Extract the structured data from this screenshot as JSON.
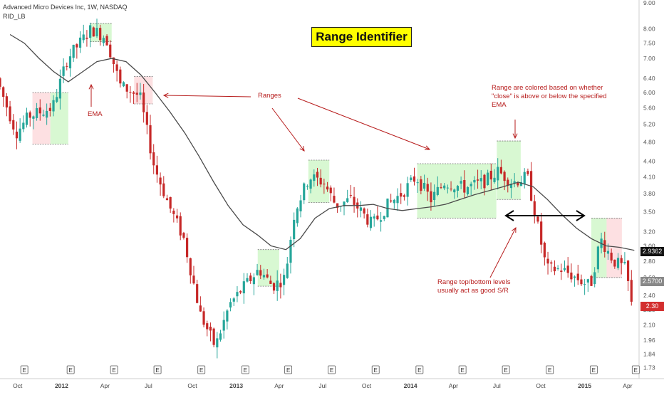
{
  "header": {
    "symbol_line": "Advanced Micro Devices Inc, 1W, NASDAQ",
    "indicator": "RID_LB"
  },
  "title": "Range Identifier",
  "annotations": {
    "ema": "EMA",
    "ranges": "Ranges",
    "colored_note": [
      "Range are colored based on whether",
      "\"close\" is above or below the specified",
      "EMA"
    ],
    "sr_note": [
      "Range top/bottom levels",
      "usually act as good S/R"
    ]
  },
  "price_tags": {
    "ema_value": "2.9362",
    "level_value": "2.5700",
    "last_close": "2.30"
  },
  "colors": {
    "up": "#26a69a",
    "down": "#c62828",
    "range_up_fill": "#d8f8d2",
    "range_down_fill": "#fde0e2",
    "ema_line": "#4a4a4a",
    "annotation": "#b71c1c",
    "title_bg": "#ffff00",
    "ema_tag_bg": "#111111",
    "level_tag_bg": "#888888",
    "last_tag_bg": "#d32f2f"
  },
  "chart_data": {
    "type": "candlestick",
    "timeframe": "1W",
    "y_axis": {
      "scale": "log",
      "ylim": [
        1.7,
        9.0
      ],
      "ticks": [
        "9.00",
        "8.00",
        "7.50",
        "7.00",
        "6.40",
        "6.00",
        "5.60",
        "5.20",
        "4.80",
        "4.40",
        "4.10",
        "3.80",
        "3.50",
        "3.20",
        "3.00",
        "2.80",
        "2.60",
        "2.40",
        "2.25",
        "2.10",
        "1.96",
        "1.84",
        "1.73"
      ]
    },
    "x_axis": {
      "date_range": [
        "2011-09",
        "2015-04"
      ],
      "tick_labels": [
        "Oct",
        "2012",
        "Apr",
        "Jul",
        "Oct",
        "2013",
        "Apr",
        "Jul",
        "Oct",
        "2014",
        "Apr",
        "Jul",
        "Oct",
        "2015",
        "Apr"
      ]
    },
    "earnings_marker": "E",
    "earnings_count": 15,
    "ema_series": {
      "name": "EMA",
      "points": [
        [
          "2011-09-15",
          7.8
        ],
        [
          "2011-10-15",
          7.5
        ],
        [
          "2011-11-15",
          7.0
        ],
        [
          "2011-12-15",
          6.6
        ],
        [
          "2012-01-15",
          6.3
        ],
        [
          "2012-02-15",
          6.6
        ],
        [
          "2012-03-15",
          6.9
        ],
        [
          "2012-04-15",
          7.0
        ],
        [
          "2012-05-15",
          6.9
        ],
        [
          "2012-06-15",
          6.5
        ],
        [
          "2012-07-15",
          6.0
        ],
        [
          "2012-08-15",
          5.5
        ],
        [
          "2012-09-15",
          5.0
        ],
        [
          "2012-10-15",
          4.5
        ],
        [
          "2012-11-15",
          4.0
        ],
        [
          "2012-12-15",
          3.6
        ],
        [
          "2013-01-15",
          3.3
        ],
        [
          "2013-02-15",
          3.15
        ],
        [
          "2013-03-15",
          3.0
        ],
        [
          "2013-04-15",
          2.95
        ],
        [
          "2013-05-15",
          3.1
        ],
        [
          "2013-06-15",
          3.4
        ],
        [
          "2013-07-15",
          3.55
        ],
        [
          "2013-08-15",
          3.6
        ],
        [
          "2013-09-15",
          3.6
        ],
        [
          "2013-10-15",
          3.62
        ],
        [
          "2013-11-15",
          3.55
        ],
        [
          "2013-12-15",
          3.52
        ],
        [
          "2014-01-15",
          3.55
        ],
        [
          "2014-02-15",
          3.58
        ],
        [
          "2014-03-15",
          3.62
        ],
        [
          "2014-04-15",
          3.7
        ],
        [
          "2014-05-15",
          3.78
        ],
        [
          "2014-06-15",
          3.85
        ],
        [
          "2014-07-15",
          3.92
        ],
        [
          "2014-08-15",
          4.0
        ],
        [
          "2014-09-15",
          3.92
        ],
        [
          "2014-10-15",
          3.7
        ],
        [
          "2014-11-15",
          3.45
        ],
        [
          "2014-12-15",
          3.25
        ],
        [
          "2015-01-15",
          3.1
        ],
        [
          "2015-02-15",
          3.0
        ],
        [
          "2015-03-15",
          2.98
        ],
        [
          "2015-04-15",
          2.94
        ]
      ]
    },
    "ranges": [
      {
        "start": "2011-11-01",
        "end": "2012-01-15",
        "top": 6.0,
        "bottom": 4.75,
        "color": "down-up"
      },
      {
        "start": "2012-03-01",
        "end": "2012-04-15",
        "top": 8.2,
        "bottom": 7.55,
        "color": "up"
      },
      {
        "start": "2012-06-01",
        "end": "2012-07-10",
        "top": 6.45,
        "bottom": 5.7,
        "color": "down"
      },
      {
        "start": "2013-02-15",
        "end": "2013-04-01",
        "top": 2.95,
        "bottom": 2.5,
        "color": "up"
      },
      {
        "start": "2013-06-01",
        "end": "2013-07-15",
        "top": 4.42,
        "bottom": 3.65,
        "color": "up"
      },
      {
        "start": "2014-01-15",
        "end": "2014-06-30",
        "top": 4.35,
        "bottom": 3.4,
        "color": "up"
      },
      {
        "start": "2014-07-01",
        "end": "2014-08-20",
        "top": 4.82,
        "bottom": 3.7,
        "color": "up"
      },
      {
        "start": "2015-01-15",
        "end": "2015-03-20",
        "top": 3.4,
        "bottom": 2.6,
        "color": "up-down"
      }
    ],
    "notable_prices": {
      "high": 8.3,
      "low": 1.81,
      "last_close": 2.3,
      "ema_last": 2.9362
    }
  }
}
